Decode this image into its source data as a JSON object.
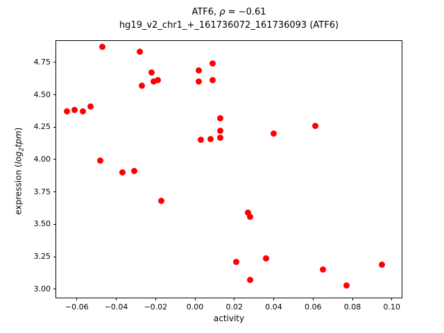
{
  "figure": {
    "title_line1_prefix": "ATF6, ",
    "title_line1_rho": "ρ",
    "title_line1_rest": " = −0.61",
    "title_line2": "hg19_v2_chr1_+_161736072_161736093 (ATF6)",
    "xlabel": "activity",
    "ylabel_prefix": "expression (",
    "ylabel_log": "log",
    "ylabel_sub": "2",
    "ylabel_tpm": "tpm",
    "ylabel_close": ")"
  },
  "chart_data": {
    "type": "scatter",
    "title": "ATF6, ρ = −0.61",
    "subtitle": "hg19_v2_chr1_+_161736072_161736093 (ATF6)",
    "xlabel": "activity",
    "ylabel": "expression (log2tpm)",
    "marker_color": "#ff0000",
    "grid": false,
    "legend": "none",
    "xlim": [
      -0.0705,
      0.105
    ],
    "ylim": [
      2.935,
      4.915
    ],
    "x_ticks": [
      -0.06,
      -0.04,
      -0.02,
      0.0,
      0.02,
      0.04,
      0.06,
      0.08,
      0.1
    ],
    "x_tick_labels": [
      "−0.06",
      "−0.04",
      "−0.02",
      "0.00",
      "0.02",
      "0.04",
      "0.06",
      "0.08",
      "0.10"
    ],
    "y_ticks": [
      3.0,
      3.25,
      3.5,
      3.75,
      4.0,
      4.25,
      4.5,
      4.75
    ],
    "y_tick_labels": [
      "3.00",
      "3.25",
      "3.50",
      "3.75",
      "4.00",
      "4.25",
      "4.50",
      "4.75"
    ],
    "points": [
      [
        -0.065,
        4.37
      ],
      [
        -0.061,
        4.38
      ],
      [
        -0.057,
        4.37
      ],
      [
        -0.053,
        4.41
      ],
      [
        -0.048,
        3.99
      ],
      [
        -0.047,
        4.87
      ],
      [
        -0.037,
        3.9
      ],
      [
        -0.031,
        3.91
      ],
      [
        -0.028,
        4.83
      ],
      [
        -0.027,
        4.57
      ],
      [
        -0.022,
        4.67
      ],
      [
        -0.021,
        4.6
      ],
      [
        -0.019,
        4.61
      ],
      [
        -0.017,
        3.68
      ],
      [
        0.002,
        4.69
      ],
      [
        0.002,
        4.6
      ],
      [
        0.003,
        4.15
      ],
      [
        0.008,
        4.16
      ],
      [
        0.009,
        4.74
      ],
      [
        0.009,
        4.61
      ],
      [
        0.013,
        4.32
      ],
      [
        0.013,
        4.22
      ],
      [
        0.013,
        4.17
      ],
      [
        0.021,
        3.21
      ],
      [
        0.027,
        3.59
      ],
      [
        0.028,
        3.56
      ],
      [
        0.028,
        3.07
      ],
      [
        0.036,
        3.24
      ],
      [
        0.04,
        4.2
      ],
      [
        0.061,
        4.26
      ],
      [
        0.065,
        3.15
      ],
      [
        0.077,
        3.03
      ],
      [
        0.095,
        3.19
      ]
    ]
  }
}
